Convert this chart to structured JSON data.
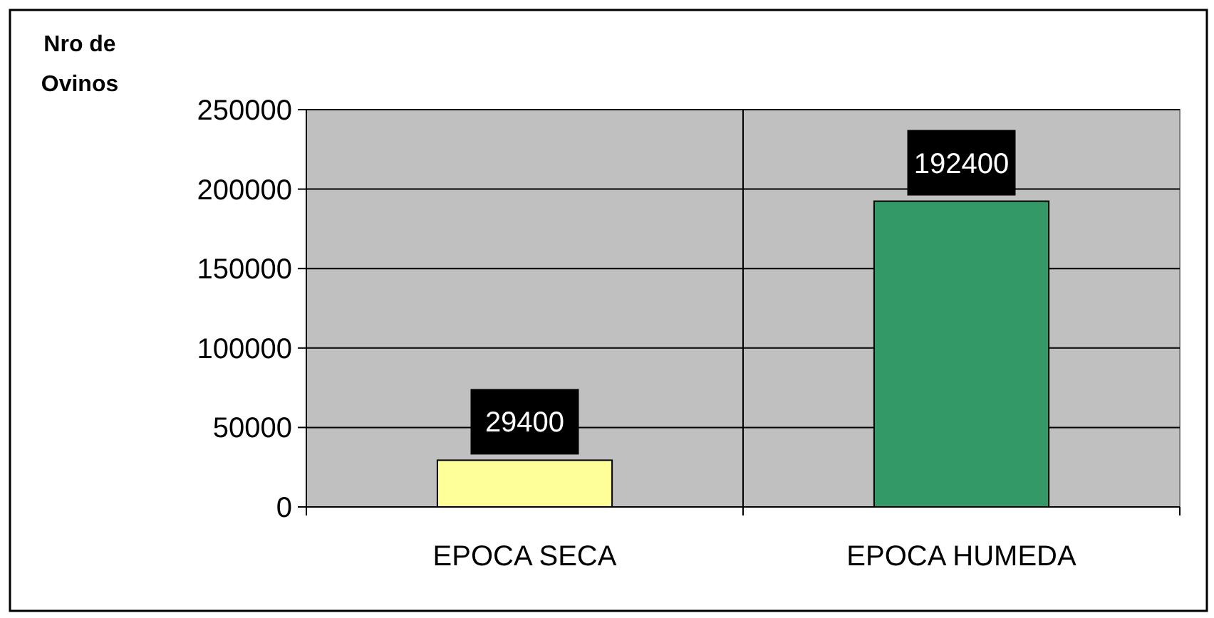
{
  "chart_data": {
    "type": "bar",
    "ylabel": "Nro de\nOvinos",
    "categories": [
      "EPOCA SECA",
      "EPOCA HUMEDA"
    ],
    "values": [
      29400,
      192400
    ],
    "colors": [
      "#ffff99",
      "#339966"
    ],
    "ylim": [
      0,
      250000
    ],
    "yticks": [
      0,
      50000,
      100000,
      150000,
      200000,
      250000
    ],
    "grid": true,
    "data_labels": true
  }
}
